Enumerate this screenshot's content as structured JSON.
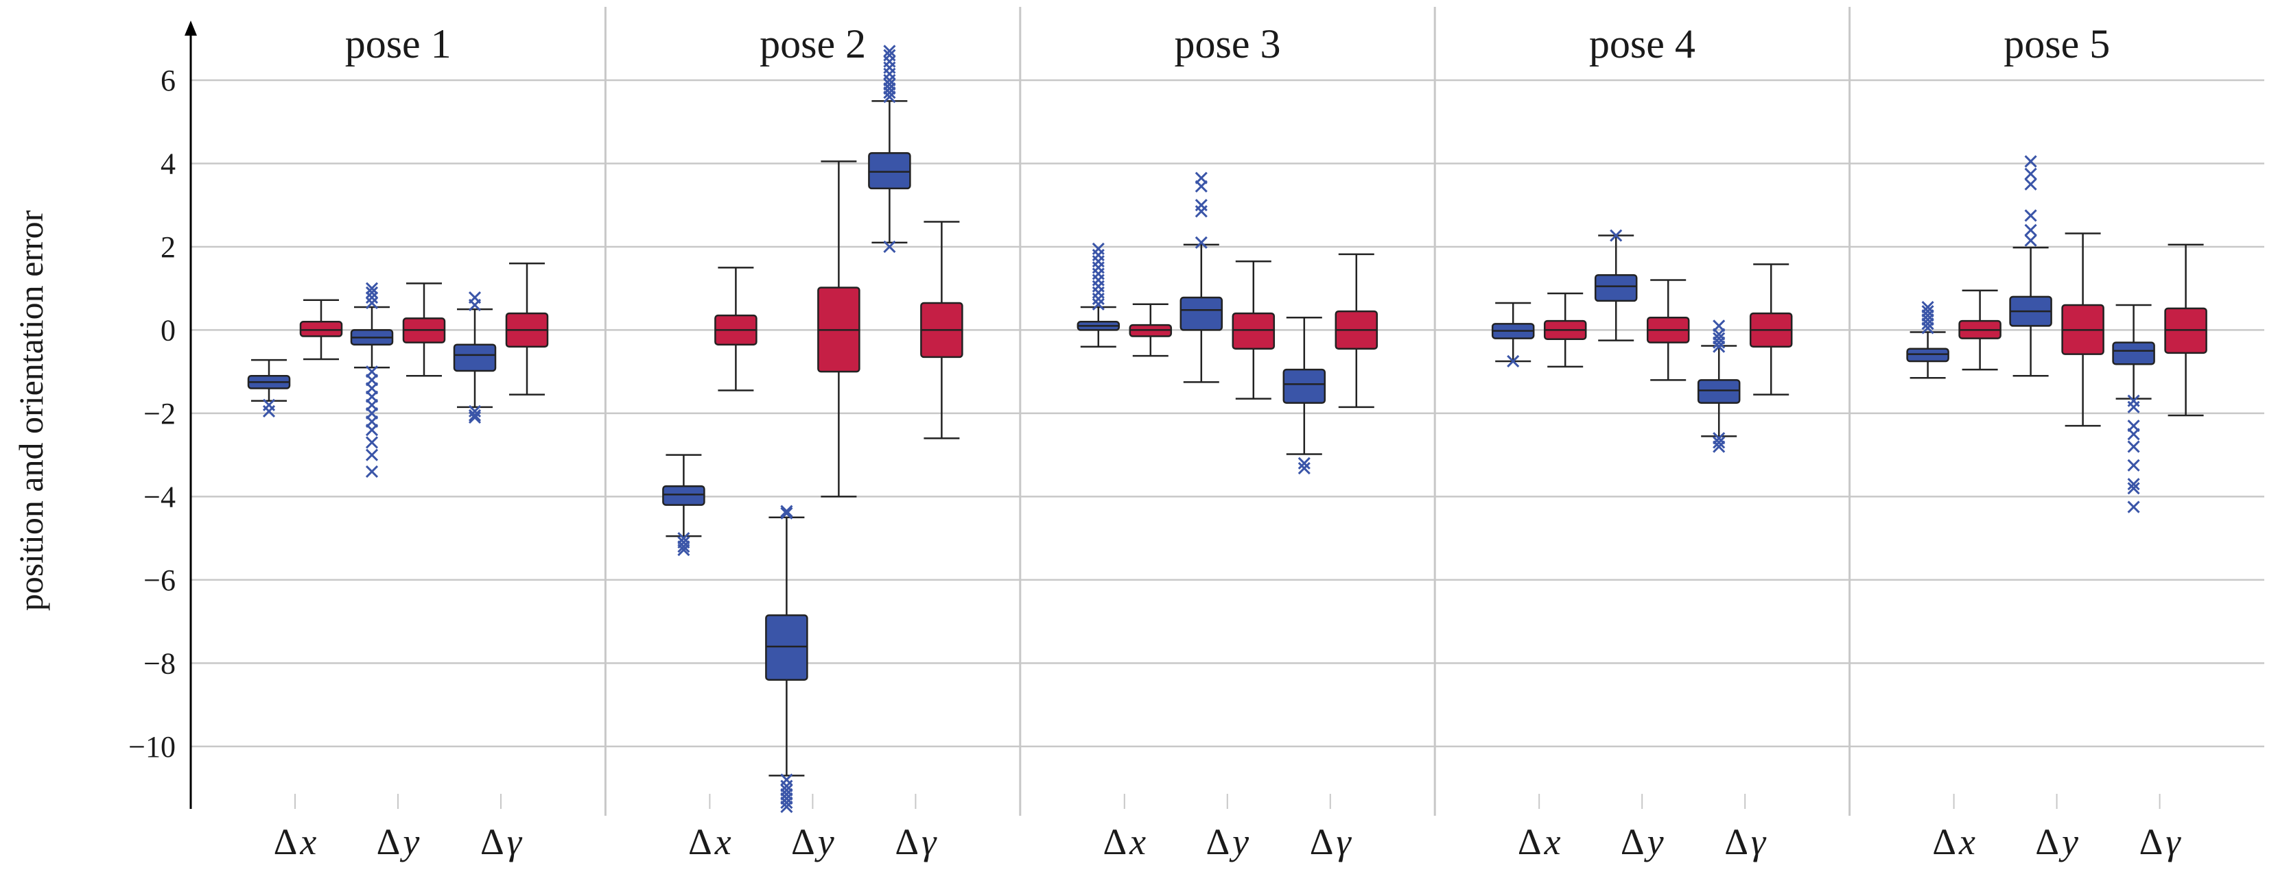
{
  "colors": {
    "blue": "#3A55A8",
    "red": "#C51F45",
    "grid": "#c8c8c8",
    "ink": "#222222",
    "blueMark": "#3A55A8"
  },
  "chart_data": {
    "type": "box",
    "ylabel": "position and orientation error",
    "ylim": [
      -11.5,
      7.3
    ],
    "yticks": [
      6,
      4,
      2,
      0,
      -2,
      -4,
      -6,
      -8,
      -10
    ],
    "ytick_labels": [
      "6",
      "4",
      "2",
      "0",
      "−2",
      "−4",
      "−6",
      "−8",
      "−10"
    ],
    "grid": true,
    "categories": [
      {
        "sym": "Δ",
        "var": "x"
      },
      {
        "sym": "Δ",
        "var": "y"
      },
      {
        "sym": "Δ",
        "var": "γ"
      }
    ],
    "panels": [
      {
        "title": "pose 1",
        "boxes": [
          {
            "cat": 0,
            "color": "blue",
            "whislo": -1.7,
            "q1": -1.4,
            "med": -1.25,
            "q3": -1.1,
            "whishi": -0.72,
            "fliers": [
              -1.8,
              -1.95
            ]
          },
          {
            "cat": 0,
            "color": "red",
            "whislo": -0.7,
            "q1": -0.15,
            "med": 0.0,
            "q3": 0.2,
            "whishi": 0.72,
            "fliers": []
          },
          {
            "cat": 1,
            "color": "blue",
            "whislo": -0.9,
            "q1": -0.35,
            "med": -0.18,
            "q3": 0.0,
            "whishi": 0.55,
            "fliers": [
              0.65,
              0.78,
              0.9,
              1.0,
              -1.0,
              -1.2,
              -1.4,
              -1.6,
              -1.8,
              -2.0,
              -2.2,
              -2.4,
              -2.7,
              -3.0,
              -3.4
            ]
          },
          {
            "cat": 1,
            "color": "red",
            "whislo": -1.1,
            "q1": -0.3,
            "med": 0.0,
            "q3": 0.28,
            "whishi": 1.12,
            "fliers": []
          },
          {
            "cat": 2,
            "color": "blue",
            "whislo": -1.85,
            "q1": -0.98,
            "med": -0.6,
            "q3": -0.35,
            "whishi": 0.5,
            "fliers": [
              0.6,
              0.78,
              -1.95,
              -2.05,
              -2.1
            ]
          },
          {
            "cat": 2,
            "color": "red",
            "whislo": -1.55,
            "q1": -0.4,
            "med": 0.0,
            "q3": 0.4,
            "whishi": 1.6,
            "fliers": []
          }
        ]
      },
      {
        "title": "pose 2",
        "boxes": [
          {
            "cat": 0,
            "color": "blue",
            "whislo": -4.95,
            "q1": -4.2,
            "med": -3.95,
            "q3": -3.75,
            "whishi": -3.0,
            "fliers": [
              -5.0,
              -5.1,
              -5.2,
              -5.28
            ]
          },
          {
            "cat": 0,
            "color": "red",
            "whislo": -1.45,
            "q1": -0.35,
            "med": 0.0,
            "q3": 0.35,
            "whishi": 1.5,
            "fliers": []
          },
          {
            "cat": 1,
            "color": "blue",
            "whislo": -10.7,
            "q1": -8.4,
            "med": -7.6,
            "q3": -6.85,
            "whishi": -4.5,
            "fliers": [
              -4.35,
              -4.4,
              -10.8,
              -10.95,
              -11.05,
              -11.15,
              -11.25,
              -11.35,
              -11.45
            ]
          },
          {
            "cat": 1,
            "color": "red",
            "whislo": -4.0,
            "q1": -1.0,
            "med": 0.0,
            "q3": 1.02,
            "whishi": 4.05,
            "fliers": []
          },
          {
            "cat": 2,
            "color": "blue",
            "whislo": 2.1,
            "q1": 3.4,
            "med": 3.8,
            "q3": 4.25,
            "whishi": 5.5,
            "fliers": [
              2.0,
              5.6,
              5.7,
              5.8,
              5.9,
              6.0,
              6.15,
              6.3,
              6.45,
              6.6,
              6.7
            ]
          },
          {
            "cat": 2,
            "color": "red",
            "whislo": -2.6,
            "q1": -0.65,
            "med": 0.0,
            "q3": 0.65,
            "whishi": 2.6,
            "fliers": []
          }
        ]
      },
      {
        "title": "pose 3",
        "boxes": [
          {
            "cat": 0,
            "color": "blue",
            "whislo": -0.4,
            "q1": 0.0,
            "med": 0.1,
            "q3": 0.2,
            "whishi": 0.55,
            "fliers": [
              0.62,
              0.75,
              0.9,
              1.05,
              1.2,
              1.35,
              1.5,
              1.65,
              1.8,
              1.95
            ]
          },
          {
            "cat": 0,
            "color": "red",
            "whislo": -0.62,
            "q1": -0.15,
            "med": 0.0,
            "q3": 0.12,
            "whishi": 0.62,
            "fliers": []
          },
          {
            "cat": 1,
            "color": "blue",
            "whislo": -1.25,
            "q1": 0.0,
            "med": 0.48,
            "q3": 0.78,
            "whishi": 2.05,
            "fliers": [
              2.1,
              2.85,
              3.0,
              3.45,
              3.65
            ]
          },
          {
            "cat": 1,
            "color": "red",
            "whislo": -1.65,
            "q1": -0.45,
            "med": 0.0,
            "q3": 0.4,
            "whishi": 1.65,
            "fliers": []
          },
          {
            "cat": 2,
            "color": "blue",
            "whislo": -2.98,
            "q1": -1.75,
            "med": -1.3,
            "q3": -0.95,
            "whishi": 0.3,
            "fliers": [
              -3.2,
              -3.32
            ]
          },
          {
            "cat": 2,
            "color": "red",
            "whislo": -1.85,
            "q1": -0.45,
            "med": 0.0,
            "q3": 0.45,
            "whishi": 1.82,
            "fliers": []
          }
        ]
      },
      {
        "title": "pose 4",
        "boxes": [
          {
            "cat": 0,
            "color": "blue",
            "whislo": -0.75,
            "q1": -0.2,
            "med": -0.02,
            "q3": 0.15,
            "whishi": 0.65,
            "fliers": [
              -0.75
            ]
          },
          {
            "cat": 0,
            "color": "red",
            "whislo": -0.88,
            "q1": -0.22,
            "med": 0.0,
            "q3": 0.22,
            "whishi": 0.88,
            "fliers": []
          },
          {
            "cat": 1,
            "color": "blue",
            "whislo": -0.25,
            "q1": 0.7,
            "med": 1.05,
            "q3": 1.32,
            "whishi": 2.27,
            "fliers": [
              2.27
            ]
          },
          {
            "cat": 1,
            "color": "red",
            "whislo": -1.2,
            "q1": -0.3,
            "med": 0.0,
            "q3": 0.3,
            "whishi": 1.2,
            "fliers": []
          },
          {
            "cat": 2,
            "color": "blue",
            "whislo": -2.55,
            "q1": -1.75,
            "med": -1.45,
            "q3": -1.2,
            "whishi": -0.38,
            "fliers": [
              -0.3,
              -0.2,
              -0.1,
              0.1,
              -0.4,
              -2.6,
              -2.7,
              -2.8
            ]
          },
          {
            "cat": 2,
            "color": "red",
            "whislo": -1.55,
            "q1": -0.4,
            "med": 0.0,
            "q3": 0.4,
            "whishi": 1.58,
            "fliers": []
          }
        ]
      },
      {
        "title": "pose 5",
        "boxes": [
          {
            "cat": 0,
            "color": "blue",
            "whislo": -1.15,
            "q1": -0.75,
            "med": -0.58,
            "q3": -0.45,
            "whishi": -0.05,
            "fliers": [
              0.05,
              0.15,
              0.25,
              0.35,
              0.45,
              0.55
            ]
          },
          {
            "cat": 0,
            "color": "red",
            "whislo": -0.95,
            "q1": -0.2,
            "med": 0.0,
            "q3": 0.22,
            "whishi": 0.95,
            "fliers": []
          },
          {
            "cat": 1,
            "color": "blue",
            "whislo": -1.1,
            "q1": 0.1,
            "med": 0.45,
            "q3": 0.8,
            "whishi": 1.98,
            "fliers": [
              2.15,
              2.4,
              2.75,
              3.5,
              3.75,
              4.05
            ]
          },
          {
            "cat": 1,
            "color": "red",
            "whislo": -2.3,
            "q1": -0.58,
            "med": 0.0,
            "q3": 0.6,
            "whishi": 2.32,
            "fliers": []
          },
          {
            "cat": 2,
            "color": "blue",
            "whislo": -1.65,
            "q1": -0.82,
            "med": -0.5,
            "q3": -0.3,
            "whishi": 0.6,
            "fliers": [
              -1.7,
              -1.85,
              -2.3,
              -2.5,
              -2.8,
              -3.25,
              -3.7,
              -3.8,
              -4.25
            ]
          },
          {
            "cat": 2,
            "color": "red",
            "whislo": -2.05,
            "q1": -0.55,
            "med": 0.0,
            "q3": 0.52,
            "whishi": 2.05,
            "fliers": []
          }
        ]
      }
    ]
  }
}
